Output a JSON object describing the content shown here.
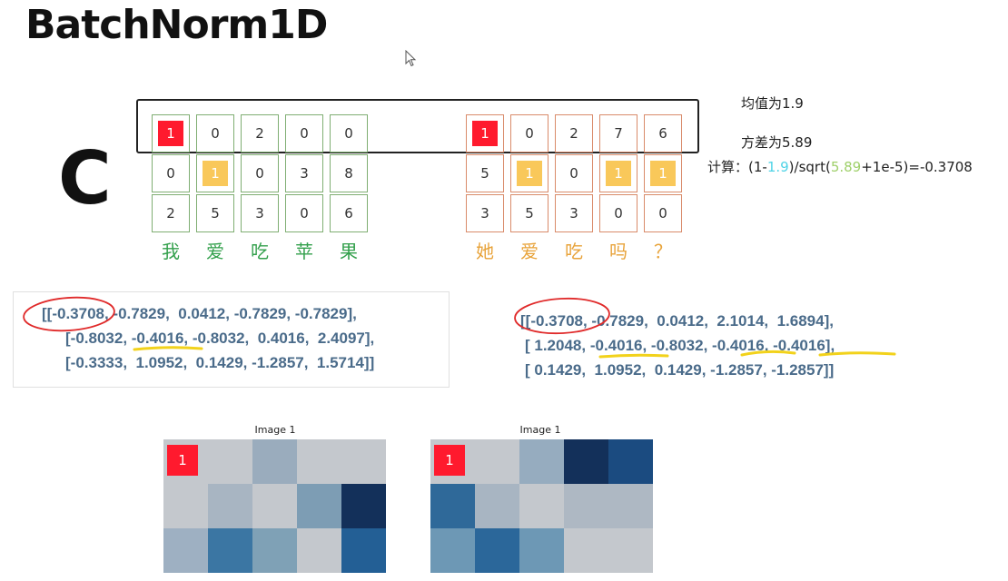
{
  "title": "BatchNorm1D",
  "big_letter": "C",
  "colors": {
    "green": "#7fae72",
    "orange": "#d98b6a",
    "red": "#ff1a2e",
    "yellow": "#f9c85a",
    "word_green": "#33a04c",
    "word_orange": "#e8a33a",
    "matrix_text": "#4a6b8a"
  },
  "sentence1": {
    "rows": [
      [
        "1",
        "0",
        "2",
        "0",
        "0"
      ],
      [
        "0",
        "1",
        "0",
        "3",
        "8"
      ],
      [
        "2",
        "5",
        "3",
        "0",
        "6"
      ]
    ],
    "words": [
      "我",
      "爱",
      "吃",
      "苹",
      "果"
    ]
  },
  "sentence2": {
    "rows": [
      [
        "1",
        "0",
        "2",
        "7",
        "6"
      ],
      [
        "5",
        "1",
        "0",
        "1",
        "1"
      ],
      [
        "3",
        "5",
        "3",
        "0",
        "0"
      ]
    ],
    "words": [
      "她",
      "爱",
      "吃",
      "吗",
      "？"
    ]
  },
  "stats": {
    "mean": "均值为1.9",
    "variance": "方差为5.89",
    "calc_prefix": "计算：(1-",
    "calc_mean": "1.9",
    "calc_mid": ")/sqrt(",
    "calc_var": "5.89",
    "calc_suffix": "+1e-5)=-0.3708"
  },
  "matrix1": [
    "[[-0.3708, -0.7829,  0.0412, -0.7829, -0.7829],",
    "[-0.8032, -0.4016, -0.8032,  0.4016,  2.4097],",
    "[-0.3333,  1.0952,  0.1429, -1.2857,  1.5714]]"
  ],
  "matrix2": [
    "[[-0.3708, -0.7829,  0.0412,  2.1014,  1.6894],",
    "[ 1.2048, -0.4016, -0.8032, -0.4016, -0.4016],",
    "[ 0.1429,  1.0952,  0.1429, -1.2857, -1.2857]]"
  ],
  "image1": {
    "title": "Image 1",
    "badge": "1",
    "colors": [
      [
        "#ff1a2e",
        "#c4c8cd",
        "#9aacbd",
        "#c4c8cd",
        "#c4c8cd"
      ],
      [
        "#c4c8cd",
        "#a8b5c2",
        "#c4c8cd",
        "#7d9db4",
        "#13305a"
      ],
      [
        "#9eb0c2",
        "#3b76a3",
        "#7fa1b6",
        "#c4c8cd",
        "#235f95"
      ]
    ]
  },
  "image2": {
    "title": "Image 1",
    "badge": "1",
    "colors": [
      [
        "#ff1a2e",
        "#c4c8cd",
        "#96acbf",
        "#13305a",
        "#1b4b80"
      ],
      [
        "#2f6999",
        "#a8b5c2",
        "#c4c8cd",
        "#aeb8c3",
        "#aeb8c3"
      ],
      [
        "#6d98b5",
        "#2b679a",
        "#6d98b5",
        "#c4c8cd",
        "#c4c8cd"
      ]
    ]
  }
}
